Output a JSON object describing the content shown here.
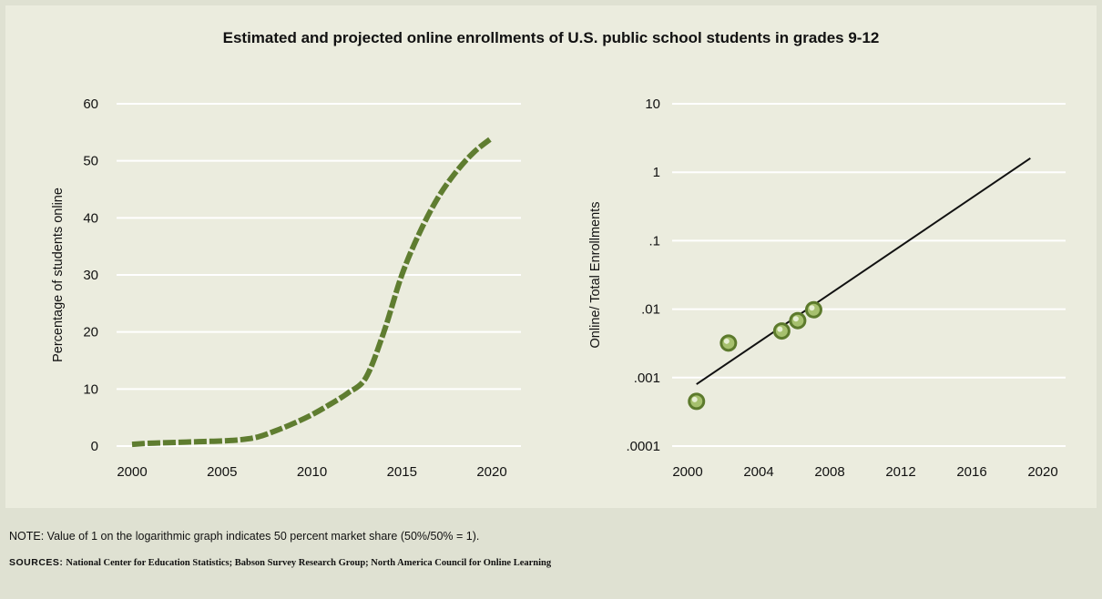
{
  "title": "Estimated and projected online enrollments of U.S. public school students in grades 9-12",
  "colors": {
    "panel": "#ebecde",
    "page": "#dfe1d2",
    "series_green": "#5f7d30",
    "grid": "#ffffff",
    "fit_line": "#111111",
    "point_fill": "#a6c06e",
    "point_stroke": "#5c7a2c"
  },
  "note": "NOTE: Value of 1 on the logarithmic graph indicates 50 percent market share (50%/50% = 1).",
  "sources": {
    "label": "SOURCES:",
    "text": "National Center for Education Statistics; Babson Survey Research Group; North America Council for Online Learning"
  },
  "chart_data": [
    {
      "type": "line",
      "ylabel": "Percentage of students online",
      "xlabel": "",
      "xlim": [
        2000,
        2020
      ],
      "ylim": [
        0,
        60
      ],
      "x_ticks": [
        "2000",
        "2005",
        "2010",
        "2015",
        "2020"
      ],
      "y_ticks": [
        "0",
        "10",
        "20",
        "30",
        "40",
        "50",
        "60"
      ],
      "grid": "horizontal",
      "series": [
        {
          "style": "dashed-thick",
          "x": [
            2000,
            2001,
            2002,
            2003,
            2004,
            2005,
            2006,
            2007,
            2008,
            2009,
            2010,
            2011,
            2012,
            2013,
            2014,
            2015,
            2016,
            2017,
            2018,
            2019,
            2020
          ],
          "y": [
            0.3,
            0.5,
            0.6,
            0.7,
            0.8,
            0.9,
            1.1,
            1.6,
            2.7,
            4.0,
            5.5,
            7.3,
            9.3,
            12.0,
            20.0,
            30.0,
            37.5,
            43.5,
            48.0,
            51.5,
            54.0
          ]
        }
      ]
    },
    {
      "type": "scatter",
      "ylabel": "Online/ Total Enrollments",
      "xlabel": "",
      "yscale": "log",
      "xlim": [
        2000,
        2020
      ],
      "ylim": [
        0.0001,
        10
      ],
      "x_ticks": [
        "2000",
        "2004",
        "2008",
        "2012",
        "2016",
        "2020"
      ],
      "y_ticks": [
        ".0001",
        ".001",
        ".01",
        ".1",
        "1",
        "10"
      ],
      "grid": "horizontal",
      "series": [
        {
          "kind": "points",
          "x": [
            2000.5,
            2002.3,
            2005.3,
            2006.2,
            2007.1
          ],
          "y": [
            0.00045,
            0.0032,
            0.0048,
            0.0068,
            0.0098
          ]
        },
        {
          "kind": "trend-line",
          "x": [
            2000.5,
            2019.3
          ],
          "y": [
            0.0008,
            1.6
          ]
        }
      ]
    }
  ]
}
